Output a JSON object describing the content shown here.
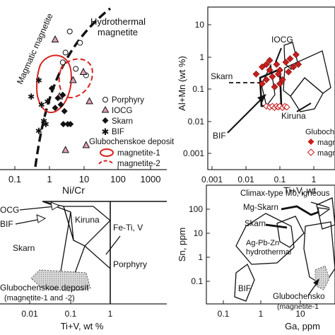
{
  "chart_data": [
    {
      "type": "scatter",
      "xlabel": "Ni/Cr",
      "ylabel": "",
      "x_scale": "log",
      "x_ticks": [
        "0.1",
        "1",
        "10",
        "100",
        "1000"
      ],
      "field_labels": [
        "Hydrothermal",
        "magnetite",
        "Magmatic magnetite"
      ],
      "legend_entries": [
        "Porphyry",
        "IOCG",
        "Skarn",
        "BIF",
        "Glubochenskoe deposit",
        "magnetite-1",
        "magnetite-2"
      ],
      "series": [
        {
          "name": "Porphyry",
          "marker": "open-circle",
          "points": [
            [
              4,
              0.85
            ],
            [
              8,
              0.78
            ],
            [
              3,
              0.72
            ],
            [
              6,
              0.62
            ],
            [
              12,
              0.58
            ],
            [
              2.5,
              0.66
            ]
          ]
        },
        {
          "name": "IOCG",
          "marker": "triangle",
          "points": [
            [
              1.5,
              0.8
            ],
            [
              5,
              0.55
            ],
            [
              2,
              0.45
            ],
            [
              10,
              0.6
            ],
            [
              3,
              0.12
            ],
            [
              12,
              0.15
            ],
            [
              15,
              0.42
            ]
          ]
        },
        {
          "name": "Skarn",
          "marker": "diamond",
          "points": [
            [
              1.2,
              0.5
            ],
            [
              1.8,
              0.44
            ],
            [
              2.5,
              0.46
            ],
            [
              1.5,
              0.38
            ],
            [
              2.8,
              0.36
            ],
            [
              2.6,
              0.28
            ],
            [
              3.5,
              0.28
            ],
            [
              4.2,
              0.28
            ],
            [
              2.2,
              0.4
            ]
          ]
        },
        {
          "name": "BIF",
          "marker": "asterisk",
          "points": [
            [
              0.5,
              0.55
            ],
            [
              0.3,
              0.45
            ],
            [
              0.6,
              0.4
            ],
            [
              0.7,
              0.3
            ],
            [
              0.5,
              0.24
            ],
            [
              0.9,
              0.42
            ],
            [
              0.8,
              0.28
            ]
          ]
        }
      ]
    },
    {
      "type": "scatter",
      "xlabel": "Ti+V, wt",
      "ylabel": "Al+Mn (wt %)",
      "x_scale": "log",
      "y_scale": "log",
      "x_ticks": [
        "0.001",
        "0.01",
        "0.1",
        "1"
      ],
      "y_ticks": [
        "10",
        "1",
        "0.1",
        "0.01",
        "0.001"
      ],
      "field_labels": [
        "IOCG",
        "Skarn",
        "BIF",
        "Kiruna"
      ],
      "legend_entries": [
        "Glubocheno",
        "magn",
        "magn"
      ],
      "series": [
        {
          "name": "magn",
          "marker": "filled-diamond",
          "points": [
            [
              0.02,
              0.3
            ],
            [
              0.03,
              0.5
            ],
            [
              0.05,
              0.8
            ],
            [
              0.08,
              0.6
            ],
            [
              0.04,
              0.2
            ],
            [
              0.06,
              0.25
            ],
            [
              0.1,
              0.4
            ],
            [
              0.15,
              0.7
            ],
            [
              0.2,
              0.9
            ],
            [
              0.03,
              0.15
            ],
            [
              0.07,
              0.12
            ],
            [
              0.12,
              0.2
            ],
            [
              0.25,
              0.5
            ],
            [
              0.05,
              0.4
            ],
            [
              0.09,
              0.3
            ],
            [
              0.18,
              0.35
            ],
            [
              0.35,
              0.6
            ],
            [
              0.04,
              0.6
            ],
            [
              0.1,
              0.15
            ],
            [
              0.3,
              1.2
            ]
          ]
        },
        {
          "name": "magn",
          "marker": "open-diamond",
          "points": [
            [
              0.04,
              0.03
            ],
            [
              0.05,
              0.028
            ],
            [
              0.06,
              0.03
            ],
            [
              0.07,
              0.027
            ],
            [
              0.08,
              0.03
            ],
            [
              0.09,
              0.028
            ],
            [
              0.1,
              0.03
            ],
            [
              0.12,
              0.027
            ],
            [
              0.14,
              0.03
            ],
            [
              0.16,
              0.028
            ]
          ]
        }
      ]
    },
    {
      "type": "diagram",
      "xlabel": "Ti+V, wt %",
      "x_scale": "log",
      "x_ticks": [
        "0.01",
        "0.1",
        "1"
      ],
      "field_labels": [
        "OCG",
        "BIF",
        "Skarn",
        "Kiruna",
        "Fe-Ti, V",
        "Porphyry",
        "Glubochenskoe deposit",
        "(magnetite-1 and -2)"
      ]
    },
    {
      "type": "diagram",
      "xlabel": "Ga, ppm",
      "ylabel": "Sn, ppm",
      "x_scale": "log",
      "y_scale": "log",
      "x_ticks": [
        "0.1",
        "1",
        "10"
      ],
      "y_ticks": [
        "100",
        "10",
        "1",
        "0.1"
      ],
      "field_labels": [
        "Climax-type Mo, igneous",
        "Mg-Skarn",
        "Skarn",
        "Ag-Pb-Zn",
        "hydrothermal",
        "BIF",
        "Glubochensko",
        "(magnetite-1"
      ]
    }
  ]
}
